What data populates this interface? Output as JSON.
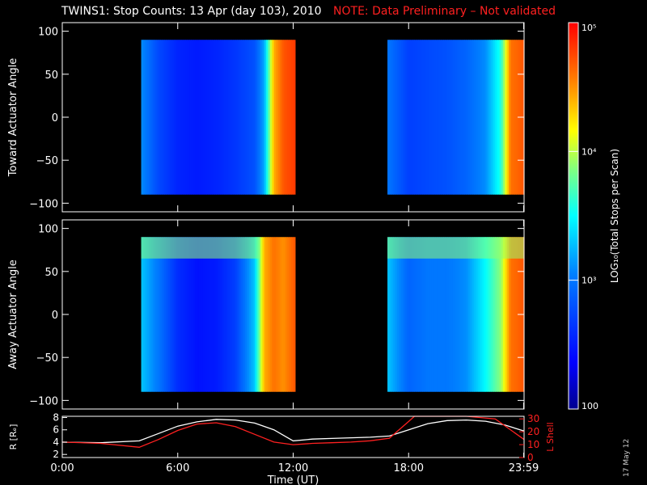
{
  "title": {
    "main": "TWINS1: Stop Counts: 13 Apr (day 103), 2010",
    "note": "NOTE: Data Preliminary – Not validated"
  },
  "datestamp": "17 May 12",
  "colors": {
    "background": "#000000",
    "axes": "#ffffff",
    "note": "#ff2020",
    "l_shell_line": "#ff2020",
    "r_line": "#ffffff"
  },
  "chart_data": [
    {
      "type": "heatmap",
      "title": "Toward Actuator Angle",
      "xlabel": "",
      "ylabel": "Toward Actuator Angle",
      "xlim": [
        0,
        24
      ],
      "ylim": [
        -110,
        110
      ],
      "y_ticks": [
        "100",
        "50",
        "0",
        "−50",
        "−100"
      ],
      "y_tick_values": [
        100,
        50,
        0,
        -50,
        -100
      ],
      "angle_range": [
        -90,
        90
      ],
      "no_data_intervals": [
        [
          0,
          4.1
        ],
        [
          12.1,
          16.9
        ]
      ],
      "data_intervals": [
        [
          4.1,
          12.1
        ],
        [
          16.9,
          24
        ]
      ],
      "log10_counts_profile": [
        {
          "t": 4.1,
          "v": 3.1
        },
        {
          "t": 5.0,
          "v": 2.75
        },
        {
          "t": 6.0,
          "v": 2.55
        },
        {
          "t": 7.0,
          "v": 2.5
        },
        {
          "t": 8.0,
          "v": 2.55
        },
        {
          "t": 9.0,
          "v": 2.65
        },
        {
          "t": 10.0,
          "v": 2.8
        },
        {
          "t": 10.5,
          "v": 3.2
        },
        {
          "t": 11.0,
          "v": 4.4
        },
        {
          "t": 11.5,
          "v": 4.7
        },
        {
          "t": 12.1,
          "v": 4.8
        },
        {
          "t": 16.9,
          "v": 3.0
        },
        {
          "t": 18.0,
          "v": 2.7
        },
        {
          "t": 19.0,
          "v": 2.75
        },
        {
          "t": 20.0,
          "v": 2.8
        },
        {
          "t": 21.0,
          "v": 2.9
        },
        {
          "t": 22.0,
          "v": 3.1
        },
        {
          "t": 22.8,
          "v": 3.6
        },
        {
          "t": 23.3,
          "v": 4.6
        },
        {
          "t": 24.0,
          "v": 4.7
        }
      ]
    },
    {
      "type": "heatmap",
      "title": "Away Actuator Angle",
      "xlabel": "",
      "ylabel": "Away Actuator Angle",
      "xlim": [
        0,
        24
      ],
      "ylim": [
        -110,
        110
      ],
      "y_ticks": [
        "100",
        "50",
        "0",
        "−50",
        "−100"
      ],
      "y_tick_values": [
        100,
        50,
        0,
        -50,
        -100
      ],
      "angle_range": [
        -90,
        90
      ],
      "no_data_intervals": [
        [
          0,
          4.1
        ],
        [
          12.1,
          16.9
        ]
      ],
      "data_intervals": [
        [
          4.1,
          12.1
        ],
        [
          16.9,
          24
        ]
      ],
      "log10_counts_profile": [
        {
          "t": 4.1,
          "v": 3.3
        },
        {
          "t": 5.0,
          "v": 3.0
        },
        {
          "t": 6.0,
          "v": 2.6
        },
        {
          "t": 7.0,
          "v": 2.45
        },
        {
          "t": 8.0,
          "v": 2.5
        },
        {
          "t": 9.0,
          "v": 2.7
        },
        {
          "t": 10.0,
          "v": 3.3
        },
        {
          "t": 10.5,
          "v": 4.4
        },
        {
          "t": 11.0,
          "v": 4.6
        },
        {
          "t": 11.5,
          "v": 4.5
        },
        {
          "t": 12.1,
          "v": 4.7
        },
        {
          "t": 16.9,
          "v": 3.3
        },
        {
          "t": 18.0,
          "v": 2.9
        },
        {
          "t": 19.0,
          "v": 3.0
        },
        {
          "t": 20.0,
          "v": 3.0
        },
        {
          "t": 21.0,
          "v": 3.1
        },
        {
          "t": 22.0,
          "v": 3.5
        },
        {
          "t": 22.8,
          "v": 3.9
        },
        {
          "t": 23.3,
          "v": 4.6
        },
        {
          "t": 24.0,
          "v": 4.7
        }
      ],
      "band_high_counts_angle": [
        65,
        90
      ]
    },
    {
      "type": "line",
      "title": "",
      "xlabel": "Time (UT)",
      "x_ticks": [
        "0:00",
        "6:00",
        "12:00",
        "18:00",
        "23:59"
      ],
      "x_tick_values": [
        0,
        6,
        12,
        18,
        23.98
      ],
      "xlim": [
        0,
        24
      ],
      "y_left_label": "R [Rₑ]",
      "y_left_ticks": [
        "8",
        "6",
        "4",
        "2"
      ],
      "y_left_tick_values": [
        8,
        6,
        4,
        2
      ],
      "y_left_lim": [
        1.5,
        8.2
      ],
      "y_right_label": "L Shell",
      "y_right_ticks": [
        "30",
        "20",
        "10",
        "0"
      ],
      "y_right_tick_values": [
        30,
        20,
        10,
        0
      ],
      "y_right_lim": [
        0,
        32
      ],
      "series": [
        {
          "name": "R [Rₑ]",
          "axis": "left",
          "color": "#ffffff",
          "x": [
            0,
            2,
            4,
            5,
            6,
            7,
            8,
            9,
            10,
            11,
            12,
            13,
            14,
            15,
            16,
            17,
            18,
            19,
            20,
            21,
            22,
            23,
            24
          ],
          "y": [
            4.0,
            3.9,
            4.2,
            5.4,
            6.6,
            7.3,
            7.7,
            7.6,
            7.1,
            6.0,
            4.2,
            4.5,
            4.6,
            4.7,
            4.8,
            5.0,
            6.0,
            7.0,
            7.5,
            7.6,
            7.4,
            6.8,
            5.8
          ]
        },
        {
          "name": "L Shell",
          "axis": "right",
          "color": "#ff2020",
          "x": [
            0,
            2,
            4,
            5,
            6,
            7,
            8,
            9,
            10,
            11,
            12,
            13,
            14,
            15,
            16,
            17,
            18,
            18.3,
            21,
            22.5,
            24
          ],
          "y": [
            12,
            11,
            8,
            14,
            21,
            26,
            27,
            24,
            18,
            12,
            10,
            11,
            11.5,
            12,
            13,
            15,
            28,
            32,
            32,
            30,
            14
          ]
        }
      ]
    },
    {
      "type": "heatmap",
      "title": "",
      "xlabel": "",
      "ylabel": "LOG₁₀(Total Stops per Scan)",
      "ticks": [
        "10⁵",
        "10⁴",
        "10³",
        "100"
      ],
      "tick_values": [
        5,
        4,
        3,
        2
      ],
      "range": [
        2,
        5
      ]
    }
  ]
}
